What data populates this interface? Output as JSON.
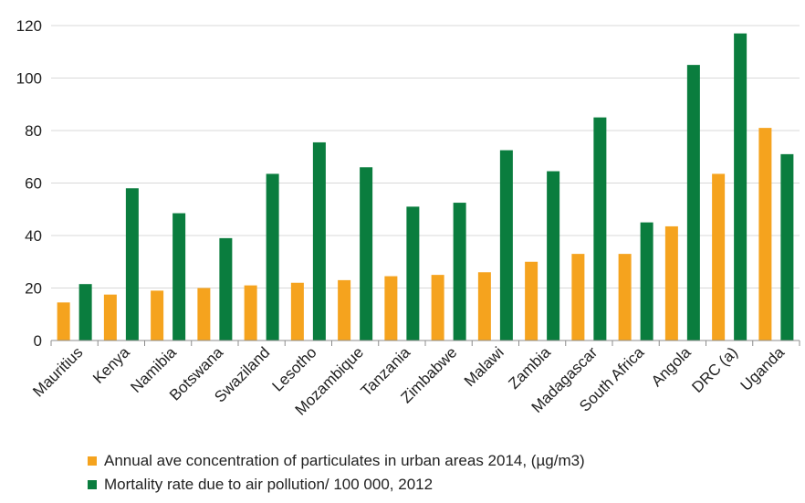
{
  "chart_data": {
    "type": "bar",
    "categories": [
      "Mauritius",
      "Kenya",
      "Namibia",
      "Botswana",
      "Swaziland",
      "Lesotho",
      "Mozambique",
      "Tanzania",
      "Zimbabwe",
      "Malawi",
      "Zambia",
      "Madagascar",
      "South Africa",
      "Angola",
      "DRC (a)",
      "Uganda"
    ],
    "series": [
      {
        "name": "Annual ave concentration of particulates in urban areas 2014, (µg/m3)",
        "color": "#f5a31e",
        "values": [
          14.5,
          17.5,
          19,
          20,
          21,
          22,
          23,
          24.5,
          25,
          26,
          30,
          33,
          33,
          43.5,
          63.5,
          81
        ]
      },
      {
        "name": "Mortality rate due to air pollution/ 100 000, 2012",
        "color": "#0a7d3e",
        "values": [
          21.5,
          58,
          48.5,
          39,
          63.5,
          75.5,
          66,
          51,
          52.5,
          72.5,
          64.5,
          85,
          45,
          105,
          117,
          71
        ]
      }
    ],
    "ylim": [
      0,
      120
    ],
    "yticks": [
      "0",
      "20",
      "40",
      "60",
      "80",
      "100",
      "120"
    ],
    "grid": true,
    "legend_position": "bottom"
  }
}
